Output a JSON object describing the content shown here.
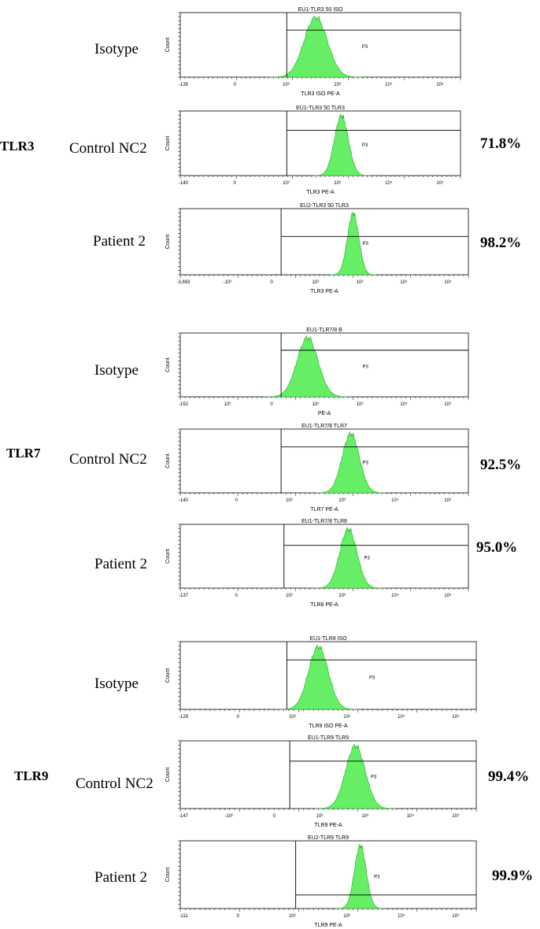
{
  "groups": [
    {
      "label": "TLR3"
    },
    {
      "label": "TLR7"
    },
    {
      "label": "TLR9"
    }
  ],
  "chart_data": [
    {
      "type": "histogram",
      "group": "TLR3",
      "row_label": "Isotype",
      "title": "EU1-TLR3 50 ISO",
      "xlabel": "TLR3 ISO PE-A",
      "ylabel": "Count",
      "x_tick_labels": [
        "-135",
        "0",
        "10²",
        "10³",
        "10⁴",
        "10⁵"
      ],
      "gate": "P3",
      "percent": "",
      "peak_decade": 2.2,
      "peak_width": 0.25
    },
    {
      "type": "histogram",
      "group": "TLR3",
      "row_label": "Control NC2",
      "title": "EU1-TLR3 50 TLR3",
      "xlabel": "TLR3 PE-A",
      "ylabel": "Count",
      "x_tick_labels": [
        "-140",
        "0",
        "10²",
        "10³",
        "10⁴",
        "10⁵"
      ],
      "gate": "P3",
      "percent": "71.8%",
      "peak_decade": 2.75,
      "peak_width": 0.15
    },
    {
      "type": "histogram",
      "group": "TLR3",
      "row_label": "Patient 2",
      "title": "EU2-TLR3 50 TLR3",
      "xlabel": "TLR3 PE-A",
      "ylabel": "Count",
      "x_tick_labels": [
        "-3,693",
        "-10²",
        "0",
        "10²",
        "10³",
        "10⁴",
        "10⁵"
      ],
      "gate": "P3",
      "percent": "98.2%",
      "peak_decade": 2.9,
      "peak_width": 0.12
    },
    {
      "type": "histogram",
      "group": "TLR7",
      "row_label": "Isotype",
      "title": "EU1-TLR7/8 B",
      "xlabel": "PE-A",
      "ylabel": "Count",
      "x_tick_labels": [
        "-152",
        "10²",
        "0",
        "10²",
        "10³",
        "10⁴",
        "10⁵"
      ],
      "gate": "P3",
      "percent": "",
      "peak_decade": 1.95,
      "peak_width": 0.22
    },
    {
      "type": "histogram",
      "group": "TLR7",
      "row_label": "Control NC2",
      "title": "EU1-TLR7/8 TLR7",
      "xlabel": "TLR7 PE-A",
      "ylabel": "Count",
      "x_tick_labels": [
        "-140",
        "0",
        "10²",
        "10³",
        "10⁴",
        "10⁵"
      ],
      "gate": "P3",
      "percent": "92.5%",
      "peak_decade": 2.85,
      "peak_width": 0.18
    },
    {
      "type": "histogram",
      "group": "TLR7",
      "row_label": "Patient 2",
      "title": "EU1-TLR7/8 TLR8",
      "xlabel": "TLR8 PE-A",
      "ylabel": "Count",
      "x_tick_labels": [
        "-137",
        "0",
        "10²",
        "10³",
        "10⁴",
        "10⁵"
      ],
      "gate": "P3",
      "percent": "95.0%",
      "peak_decade": 2.8,
      "peak_width": 0.18
    },
    {
      "type": "histogram",
      "group": "TLR9",
      "row_label": "Isotype",
      "title": "EU1-TLR9 ISO",
      "xlabel": "TLR9 ISO PE-A",
      "ylabel": "Count",
      "x_tick_labels": [
        "-129",
        "0",
        "10²",
        "10³",
        "10⁴",
        "10⁵"
      ],
      "gate": "P3",
      "percent": "",
      "peak_decade": 2.1,
      "peak_width": 0.2
    },
    {
      "type": "histogram",
      "group": "TLR9",
      "row_label": "Control NC2",
      "title": "EU1-TLR9 TLR9",
      "xlabel": "TLR9 PE-A",
      "ylabel": "Count",
      "x_tick_labels": [
        "-147",
        "-10²",
        "0",
        "10²",
        "10³",
        "10⁴",
        "10⁵"
      ],
      "gate": "P3",
      "percent": "99.4%",
      "peak_decade": 2.85,
      "peak_width": 0.2
    },
    {
      "type": "histogram",
      "group": "TLR9",
      "row_label": "Patient 2",
      "title": "EU2-TLR9 TLR9",
      "xlabel": "TLR9 PE-A",
      "ylabel": "Count",
      "x_tick_labels": [
        "-111",
        "0",
        "10²",
        "10³",
        "10⁴",
        "10⁵"
      ],
      "gate": "P3",
      "percent": "99.9%",
      "peak_decade": 2.95,
      "peak_width": 0.12
    }
  ],
  "colors": {
    "fill": "#66ee66",
    "stroke": "#22aa22",
    "axis": "#000000"
  }
}
